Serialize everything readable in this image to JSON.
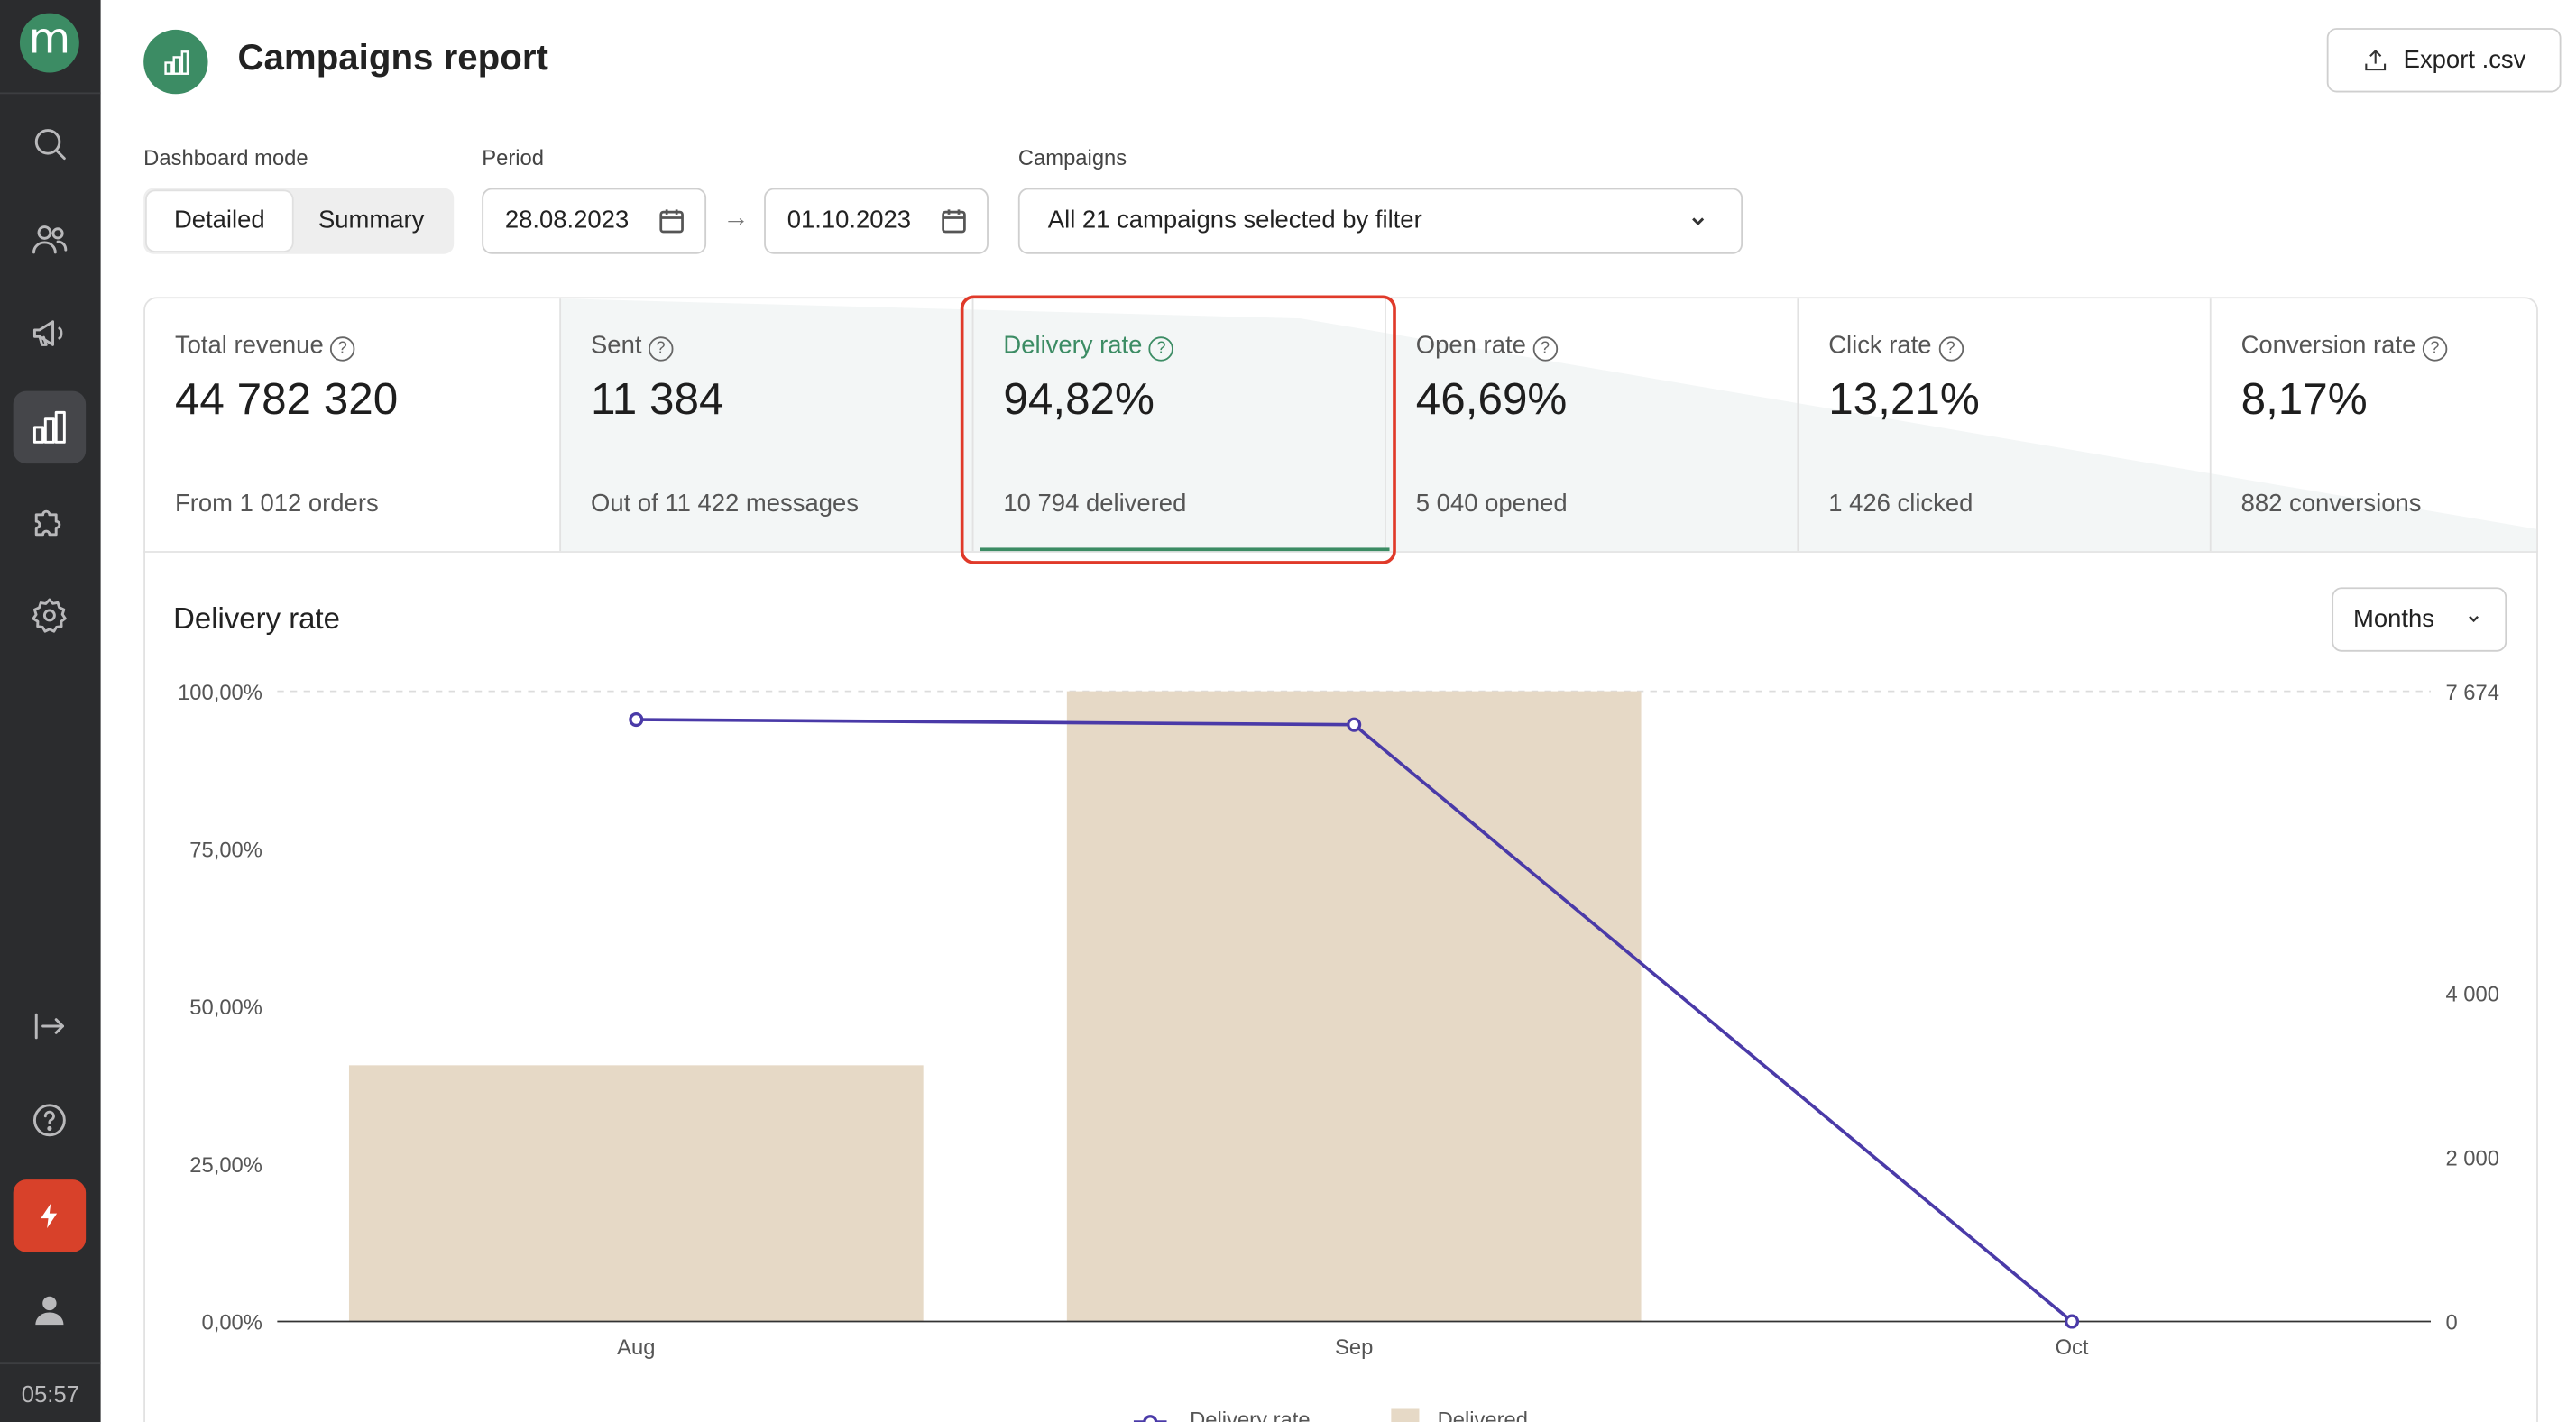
{
  "sidebar": {
    "logo": "m",
    "time": "05:57"
  },
  "header": {
    "title": "Campaigns report",
    "export_label": "Export .csv"
  },
  "filters": {
    "mode_label": "Dashboard mode",
    "mode_options": [
      "Detailed",
      "Summary"
    ],
    "mode_selected": "Detailed",
    "period_label": "Period",
    "date_from": "28.08.2023",
    "date_to": "01.10.2023",
    "arrow": "→",
    "campaigns_label": "Campaigns",
    "campaigns_value": "All 21 campaigns selected by filter"
  },
  "metrics": [
    {
      "name": "Total revenue",
      "value": "44 782 320",
      "sub": "From 1 012 orders"
    },
    {
      "name": "Sent",
      "value": "11 384",
      "sub": "Out of 11 422 messages"
    },
    {
      "name": "Delivery rate",
      "value": "94,82%",
      "sub": "10 794 delivered"
    },
    {
      "name": "Open rate",
      "value": "46,69%",
      "sub": "5 040 opened"
    },
    {
      "name": "Click rate",
      "value": "13,21%",
      "sub": "1 426 clicked"
    },
    {
      "name": "Conversion rate",
      "value": "8,17%",
      "sub": "882 conversions"
    }
  ],
  "chart_panel": {
    "title": "Delivery rate",
    "granularity": "Months"
  },
  "chart_data": {
    "type": "bar",
    "categories": [
      "Aug",
      "Sep",
      "Oct"
    ],
    "series": [
      {
        "name": "Delivered",
        "type": "bar",
        "axis": "right",
        "values": [
          3120,
          7674,
          0
        ],
        "color": "#e6d9c6"
      },
      {
        "name": "Delivery rate",
        "type": "line",
        "axis": "left",
        "values": [
          95.5,
          94.7,
          0
        ],
        "color": "#4a3aa8"
      }
    ],
    "y_left_ticks": [
      "0,00%",
      "25,00%",
      "50,00%",
      "75,00%",
      "100,00%"
    ],
    "y_left_range": [
      0,
      100
    ],
    "y_right_ticks": [
      "0",
      "2 000",
      "4 000",
      "7 674"
    ],
    "y_right_range": [
      0,
      7674
    ],
    "legend": [
      "Delivery rate",
      "Delivered"
    ],
    "legend_position": "bottom",
    "grid": "top dashed line only"
  },
  "colors": {
    "brand_green": "#3c8c64",
    "sidebar_bg": "#2b2c2e",
    "highlight_red": "#e03a2a",
    "accent_bolt": "#d8412a"
  }
}
